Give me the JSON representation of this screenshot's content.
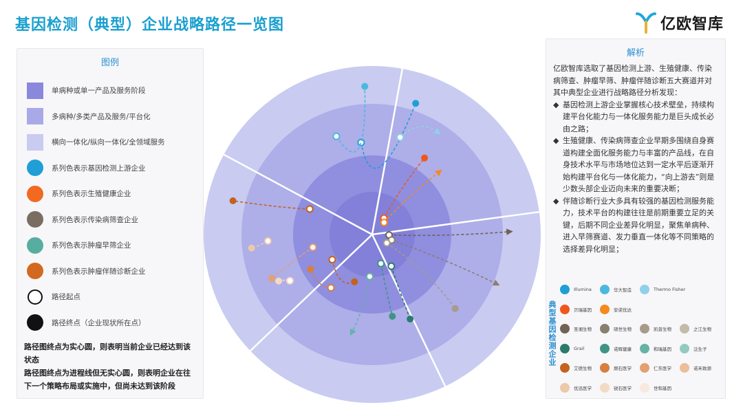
{
  "header": {
    "title": "基因检测（典型）企业战略路径一览图",
    "logo_text": "亿欧智库"
  },
  "colors": {
    "title": "#1a9fd0",
    "ring_inner": "#8a88dd",
    "ring_middle": "#a9a9e8",
    "ring_outer": "#c9cbf1",
    "upstream": "#1f9fd6",
    "reproductive": "#f26a22",
    "infectious": "#7a6e62",
    "screening": "#57aea0",
    "companion": "#d2691e"
  },
  "legend": {
    "title": "图例",
    "items": [
      {
        "label": "单病种或单一产品及服务阶段",
        "color": "#8a88dd",
        "shape": "square"
      },
      {
        "label": "多病种/多类产品及服务/平台化",
        "color": "#a9a9e8",
        "shape": "square"
      },
      {
        "label": "横向一体化/纵向一体化/全领域服务",
        "color": "#c9cbf1",
        "shape": "square"
      },
      {
        "label": "系列色表示基因检测上游企业",
        "color": "#1f9fd6",
        "shape": "circle"
      },
      {
        "label": "系列色表示生殖健康企业",
        "color": "#f26a22",
        "shape": "circle"
      },
      {
        "label": "系列色表示传染病筛查企业",
        "color": "#7a6e62",
        "shape": "circle"
      },
      {
        "label": "系列色表示肿瘤早筛企业",
        "color": "#57aea0",
        "shape": "circle"
      },
      {
        "label": "系列色表示肿瘤伴随诊断企业",
        "color": "#d2691e",
        "shape": "circle"
      },
      {
        "label": "路径起点",
        "color": "#ffffff",
        "shape": "ring"
      },
      {
        "label": "路径终点（企业现状所在点）",
        "color": "#111111",
        "shape": "circle"
      }
    ],
    "note_1": "路径图终点为实心圆，则表明当前企业已经达到该状态",
    "note_2": "路径图终点为进程线但无实心圆，则表明企业在往下一个策略布局或实施中，但尚未达到该阶段"
  },
  "analysis": {
    "title": "解析",
    "intro": "亿欧智库选取了基因检测上游、生殖健康、传染病筛查、肿瘤早筛、肿瘤伴随诊断五大赛道并对其中典型企业进行战略路径分析发现：",
    "bullets": [
      "基因检测上游企业掌握核心技术壁垒，持续构建平台化能力与一体化服务能力是巨头成长必由之路；",
      "生殖健康、传染病筛查企业早期多围绕自身赛道构建全面化服务能力与丰富的产品线，在自身技术水平与市场地位达到一定水平后逐渐开始构建平台化与一体化能力，“向上游去”则是少数头部企业迈向未来的重要决断；",
      "伴随诊断行业大多具有较强的基因检测服务能力，技术平台的构建往往是前期重要立足的关键，后期不同企业差异化明显，聚焦单病种、进入早筛赛道、发力垂直一体化等不同策略的选择差异化明显；"
    ],
    "bullet_mark": "◆",
    "company_heading": "典型基因检测企业",
    "companies": [
      [
        {
          "name": "Illumina",
          "color": "#1f9fd6"
        },
        {
          "name": "华大智造",
          "color": "#4bb8e0"
        },
        {
          "name": "Thermo Fisher",
          "color": "#8fd0ea"
        }
      ],
      [
        {
          "name": "贝瑞基因",
          "color": "#f0571b"
        },
        {
          "name": "安诺优达",
          "color": "#f58a1f"
        }
      ],
      [
        {
          "name": "圣湘生物",
          "color": "#6e6355"
        },
        {
          "name": "硕世生物",
          "color": "#8a7f6f"
        },
        {
          "name": "凯普生物",
          "color": "#a79b8a"
        },
        {
          "name": "之江生物",
          "color": "#c4baa9"
        }
      ],
      [
        {
          "name": "Grail",
          "color": "#2c7a6e"
        },
        {
          "name": "诺辉健康",
          "color": "#3f9486"
        },
        {
          "name": "和瑞基因",
          "color": "#67b3a5"
        },
        {
          "name": "泛生子",
          "color": "#93cabf"
        }
      ],
      [
        {
          "name": "艾德生物",
          "color": "#c4621e"
        },
        {
          "name": "燃石医学",
          "color": "#d67f3e"
        },
        {
          "name": "仁东医学",
          "color": "#e3a070"
        },
        {
          "name": "诺禾致源",
          "color": "#ecbe9a"
        }
      ],
      [
        {
          "name": "优迅医学",
          "color": "#edc9a8"
        },
        {
          "name": "锐石医学",
          "color": "#f2dac5"
        },
        {
          "name": "世和基因",
          "color": "#f7e9dd"
        }
      ]
    ]
  },
  "chart_data": {
    "type": "radial-path-diagram",
    "rings": [
      "单病种或单一产品及服务阶段",
      "多病种/多类产品及服务/平台化",
      "横向一体化/纵向一体化/全领域服务"
    ],
    "sectors": 5,
    "paths": [
      {
        "color": "#1f9fd6",
        "start": [
          0.55,
          -0.12
        ],
        "mid": [
          0.15,
          0.05
        ],
        "end": [
          0.82,
          0.32
        ],
        "arrow": false,
        "filled": true
      },
      {
        "color": "#4bb8e0",
        "start": [
          0.62,
          -0.35
        ],
        "mid": [
          0.3,
          -0.1
        ],
        "end": [
          0.88,
          -0.05
        ],
        "arrow": false,
        "filled": true
      },
      {
        "color": "#8fd0ea",
        "start": [
          0.6,
          0.28
        ],
        "mid": [
          0.75,
          0.4
        ],
        "end": [
          0.72,
          0.58
        ],
        "arrow": true,
        "filled": false
      },
      {
        "color": "#f0571b",
        "start": [
          0.12,
          0.62
        ],
        "mid": [
          0.35,
          0.55
        ],
        "end": [
          0.55,
          0.6
        ],
        "arrow": false,
        "filled": true
      },
      {
        "color": "#f58a1f",
        "start": [
          0.1,
          0.78
        ],
        "mid": [
          0.3,
          0.75
        ],
        "end": [
          0.55,
          0.82
        ],
        "arrow": true,
        "filled": false
      },
      {
        "color": "#6e6355",
        "start": [
          0.1,
          1.6
        ],
        "mid": [
          0.45,
          1.6
        ],
        "end": [
          0.82,
          1.55
        ],
        "arrow": true,
        "filled": false
      },
      {
        "color": "#8a7f6f",
        "start": [
          0.12,
          1.85
        ],
        "mid": [
          0.5,
          1.9
        ],
        "end": [
          0.8,
          1.95
        ],
        "arrow": true,
        "filled": false
      },
      {
        "color": "#a79b8a",
        "start": [
          0.1,
          2.1
        ],
        "mid": [
          0.4,
          2.15
        ],
        "end": [
          0.66,
          2.3
        ],
        "arrow": false,
        "filled": true
      },
      {
        "color": "#2c7a6e",
        "start": [
          0.22,
          2.6
        ],
        "mid": [
          0.4,
          2.7
        ],
        "end": [
          0.55,
          2.72
        ],
        "arrow": false,
        "filled": true
      },
      {
        "color": "#3f9486",
        "start": [
          0.18,
          2.85
        ],
        "mid": [
          0.38,
          2.9
        ],
        "end": [
          0.5,
          2.9
        ],
        "arrow": false,
        "filled": true
      },
      {
        "color": "#67b3a5",
        "start": [
          0.25,
          3.2
        ],
        "mid": [
          0.45,
          3.25
        ],
        "end": [
          0.6,
          3.35
        ],
        "arrow": true,
        "filled": false
      },
      {
        "color": "#c4621e",
        "start": [
          0.28,
          4.15
        ],
        "mid": [
          0.38,
          3.7
        ],
        "end": [
          0.3,
          3.5
        ],
        "arrow": false,
        "filled": true
      },
      {
        "color": "#d67f3e",
        "start": [
          0.4,
          3.8
        ],
        "mid": [
          0.45,
          3.95
        ],
        "end": [
          0.42,
          4.2
        ],
        "arrow": false,
        "filled": true
      },
      {
        "color": "#e3a070",
        "start": [
          0.36,
          4.5
        ],
        "mid": [
          0.48,
          4.4
        ],
        "end": [
          0.65,
          4.3
        ],
        "arrow": false,
        "filled": true
      },
      {
        "color": "#c4621e",
        "start": [
          0.4,
          5.1
        ],
        "mid": [
          0.55,
          5.0
        ],
        "end": [
          0.85,
          4.95
        ],
        "arrow": false,
        "filled": true
      },
      {
        "color": "#edc9a8",
        "start": [
          0.62,
          4.65
        ],
        "mid": [
          0.7,
          4.6
        ],
        "end": [
          0.72,
          4.6
        ],
        "arrow": false,
        "filled": true
      },
      {
        "color": "#f2dac5",
        "start": [
          0.56,
          4.2
        ],
        "mid": [
          0.6,
          4.25
        ],
        "end": [
          0.62,
          4.25
        ],
        "arrow": false,
        "filled": true
      }
    ]
  }
}
